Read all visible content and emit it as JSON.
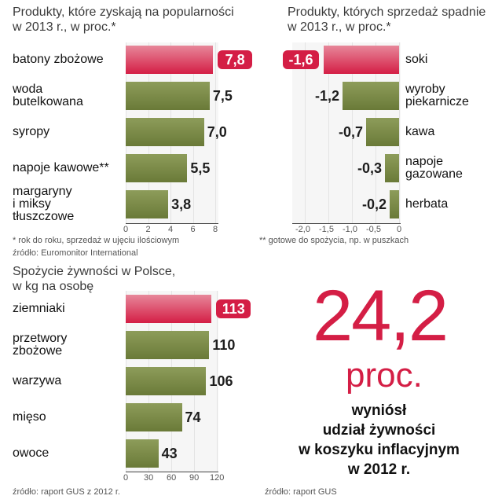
{
  "chart_data": [
    {
      "type": "bar",
      "orientation": "horizontal",
      "title": "Produkty, które zyskają na popularności w 2013 r., w proc.*",
      "categories": [
        "batony zbożowe",
        "woda butelkowana",
        "syropy",
        "napoje kawowe**",
        "margaryny i miksy tłuszczowe"
      ],
      "category_lines": [
        [
          "batony zbożowe"
        ],
        [
          "woda",
          "butelkowana"
        ],
        [
          "syropy"
        ],
        [
          "napoje kawowe**"
        ],
        [
          "margaryny",
          "i miksy",
          "tłuszczowe"
        ]
      ],
      "values": [
        7.8,
        7.5,
        7.0,
        5.5,
        3.8
      ],
      "value_labels": [
        "7,8",
        "7,5",
        "7,0",
        "5,5",
        "3,8"
      ],
      "highlight_index": 0,
      "xlim": [
        0,
        8
      ],
      "ticks": [
        "0",
        "2",
        "4",
        "6",
        "8"
      ],
      "footnotes": [
        "* rok do roku, sprzedaż w ujęciu ilościowym",
        "źródło: Euromonitor International"
      ]
    },
    {
      "type": "bar",
      "orientation": "horizontal",
      "title": "Produkty, których sprzedaż spadnie w 2013 r., w proc.*",
      "categories": [
        "soki",
        "wyroby piekarnicze",
        "kawa",
        "napoje gazowane",
        "herbata"
      ],
      "category_lines": [
        [
          "soki"
        ],
        [
          "wyroby",
          "piekarnicze"
        ],
        [
          "kawa"
        ],
        [
          "napoje",
          "gazowane"
        ],
        [
          "herbata"
        ]
      ],
      "values": [
        -1.6,
        -1.2,
        -0.7,
        -0.3,
        -0.2
      ],
      "value_labels": [
        "-1,6",
        "-1,2",
        "-0,7",
        "-0,3",
        "-0,2"
      ],
      "highlight_index": 0,
      "xlim": [
        -2.0,
        0
      ],
      "ticks": [
        "-2,0",
        "-1,5",
        "-1,0",
        "-0,5",
        "0"
      ],
      "footnotes": [
        "** gotowe do spożycia, np. w puszkach"
      ]
    },
    {
      "type": "bar",
      "orientation": "horizontal",
      "title": "Spożycie żywności w Polsce, w kg na osobę",
      "categories": [
        "ziemniaki",
        "przetwory zbożowe",
        "warzywa",
        "mięso",
        "owoce"
      ],
      "category_lines": [
        [
          "ziemniaki"
        ],
        [
          "przetwory",
          "zbożowe"
        ],
        [
          "warzywa"
        ],
        [
          "mięso"
        ],
        [
          "owoce"
        ]
      ],
      "values": [
        113,
        110,
        106,
        74,
        43
      ],
      "value_labels": [
        "113",
        "110",
        "106",
        "74",
        "43"
      ],
      "highlight_index": 0,
      "xlim": [
        0,
        120
      ],
      "ticks": [
        "0",
        "30",
        "60",
        "90",
        "120"
      ],
      "footnotes": [
        "źródło: raport GUS z 2012 r."
      ]
    }
  ],
  "texts": {
    "title1a": "Produkty, które zyskają na popularności",
    "title1b": "w 2013 r., w proc.*",
    "title2a": "Produkty, których sprzedaż spadnie",
    "title2b": "w 2013 r., w proc.*",
    "title3a": "Spożycie żywności w Polsce,",
    "title3b": "w kg na osobę",
    "note1": "* rok do roku, sprzedaż w ujęciu ilościowym",
    "note2": "źródło: Euromonitor International",
    "note3": "** gotowe do spożycia, np. w puszkach",
    "note4": "źródło: raport GUS z 2012 r.",
    "note5": "źródło: raport GUS"
  },
  "highlight": {
    "value": "24,2",
    "unit": "proc.",
    "desc_lines": [
      "wyniósł",
      "udział żywności",
      "w koszyku inflacyjnym",
      "w 2012 r."
    ]
  },
  "colors": {
    "accent": "#d41e45",
    "bar": "#7a8a46",
    "panel": "#f6f6f6"
  }
}
